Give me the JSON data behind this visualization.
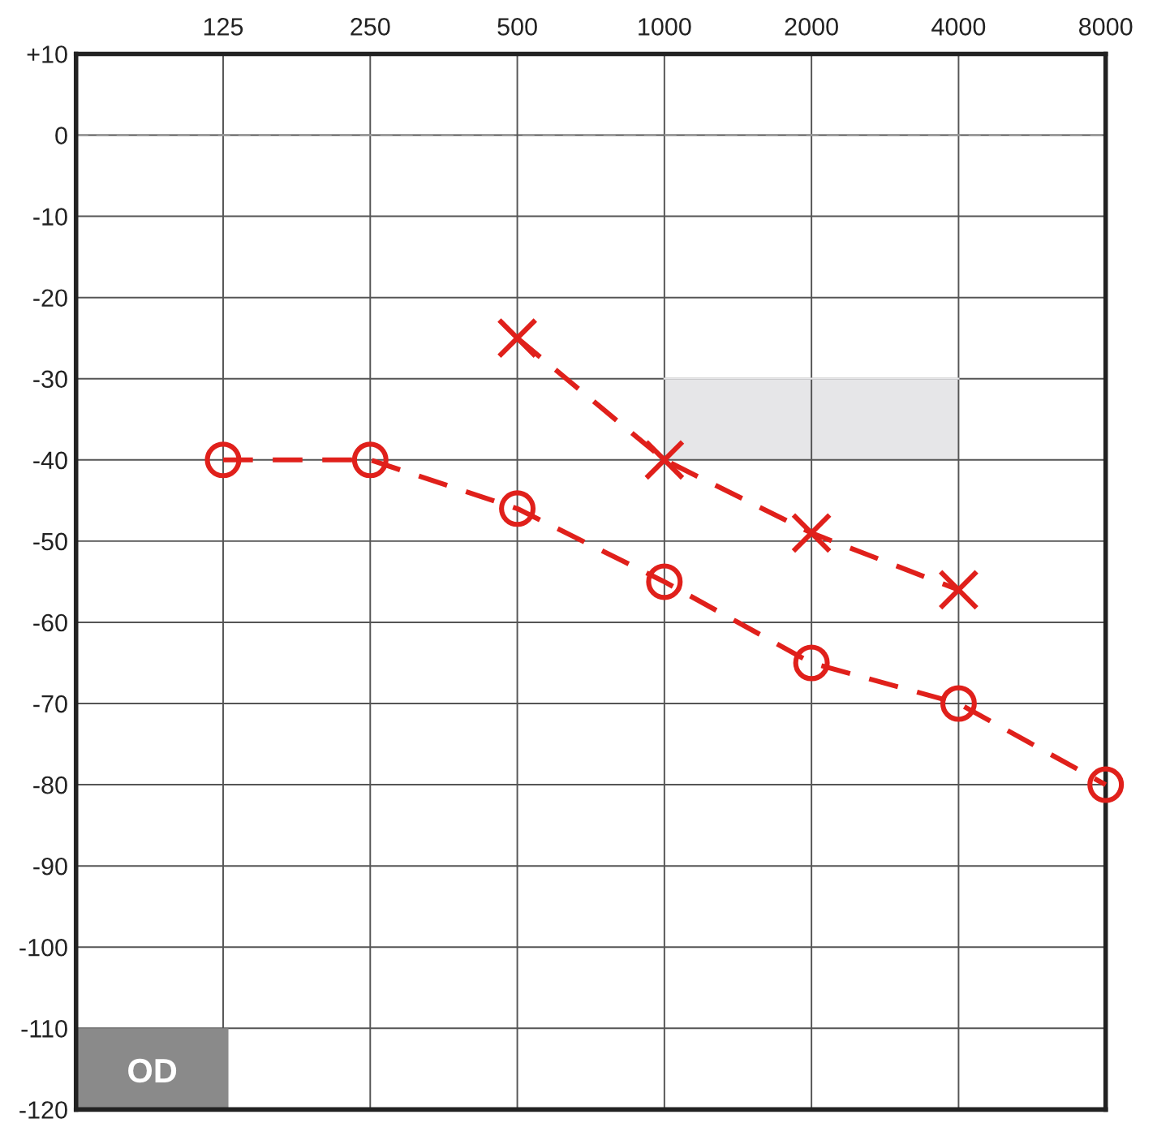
{
  "chart_data": {
    "type": "line",
    "x": [
      125,
      250,
      500,
      1000,
      2000,
      4000,
      8000
    ],
    "series": [
      {
        "color": "#e0201b",
        "marker": "circle",
        "line_style": "dashed",
        "values": [
          -40,
          -40,
          -46,
          -55,
          -65,
          -70,
          -80
        ]
      },
      {
        "color": "#e0201b",
        "marker": "cross",
        "line_style": "dashed",
        "x": [
          500,
          1000,
          2000,
          4000
        ],
        "values": [
          -25,
          -40,
          -49,
          -56
        ]
      },
      {
        "color": "#e6e6e8",
        "marker": "none",
        "line_style": "solid",
        "x": [
          1000,
          4000
        ],
        "values": [
          -30,
          -30
        ],
        "lower": [
          -40,
          -40
        ],
        "upper": [
          -30,
          -30
        ]
      }
    ],
    "log": "x",
    "xlim": [
      62.5,
      8000
    ],
    "xticks": [
      125,
      250,
      500,
      1000,
      2000,
      4000,
      8000
    ],
    "ylim": [
      -120,
      10
    ],
    "yticks": [
      {
        "value": 10,
        "label": "+10"
      },
      0,
      -10,
      -20,
      -30,
      -40,
      -50,
      -60,
      -70,
      -80,
      -90,
      -100,
      -110,
      -120
    ],
    "grid": true,
    "ref_lines": [
      {
        "axis": "y",
        "value": 0,
        "color": "#999999",
        "line_style": "dashed"
      }
    ],
    "annotations": [
      "OD"
    ]
  }
}
